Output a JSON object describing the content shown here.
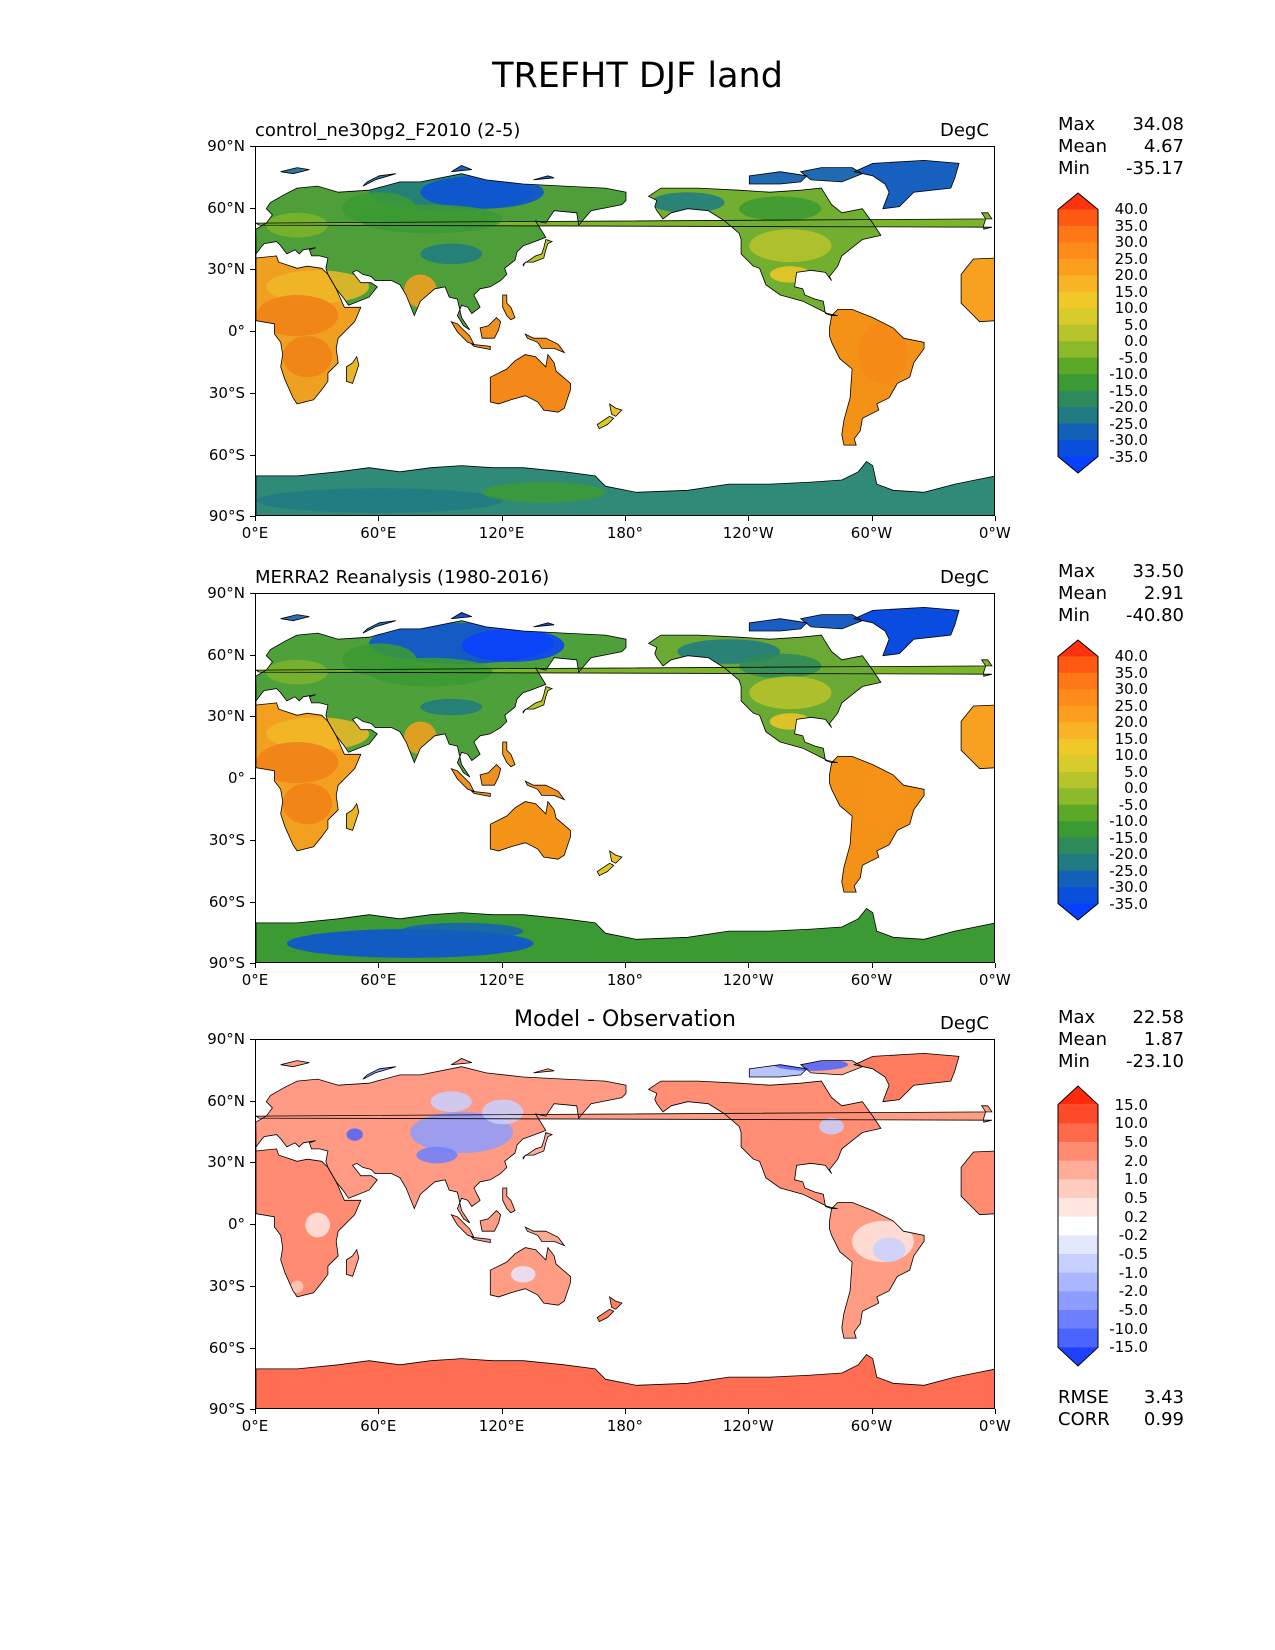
{
  "figure_title": "TREFHT DJF land",
  "lat_ticks": [
    "90°N",
    "60°N",
    "30°N",
    "0°",
    "30°S",
    "60°S",
    "90°S"
  ],
  "lon_ticks": [
    "0°E",
    "60°E",
    "120°E",
    "180°",
    "120°W",
    "60°W",
    "0°W"
  ],
  "panels": [
    {
      "title": "control_ne30pg2_F2010 (2-5)",
      "title_style": "left",
      "units": "DegC",
      "stats": {
        "max_label": "Max",
        "max": "34.08",
        "mean_label": "Mean",
        "mean": "4.67",
        "min_label": "Min",
        "min": "-35.17"
      },
      "colorbar": {
        "labels": [
          "40.0",
          "35.0",
          "30.0",
          "25.0",
          "20.0",
          "15.0",
          "10.0",
          "5.0",
          "0.0",
          "-5.0",
          "-10.0",
          "-15.0",
          "-20.0",
          "-25.0",
          "-30.0",
          "-35.0"
        ],
        "colors": [
          "#ff3210",
          "#ff5a14",
          "#ff7818",
          "#ff8c1a",
          "#fc9e1e",
          "#f8b424",
          "#f0c828",
          "#d8cc2c",
          "#b8c42c",
          "#8cba2a",
          "#5ca828",
          "#3c9a34",
          "#2e8a5a",
          "#1f7a82",
          "#1260b8",
          "#0a50dc",
          "#0840ff"
        ]
      }
    },
    {
      "title": "MERRA2 Reanalysis (1980-2016)",
      "title_style": "left",
      "units": "DegC",
      "stats": {
        "max_label": "Max",
        "max": "33.50",
        "mean_label": "Mean",
        "mean": "2.91",
        "min_label": "Min",
        "min": "-40.80"
      },
      "colorbar": {
        "labels": [
          "40.0",
          "35.0",
          "30.0",
          "25.0",
          "20.0",
          "15.0",
          "10.0",
          "5.0",
          "0.0",
          "-5.0",
          "-10.0",
          "-15.0",
          "-20.0",
          "-25.0",
          "-30.0",
          "-35.0"
        ],
        "colors": [
          "#ff3210",
          "#ff5a14",
          "#ff7818",
          "#ff8c1a",
          "#fc9e1e",
          "#f8b424",
          "#f0c828",
          "#d8cc2c",
          "#b8c42c",
          "#8cba2a",
          "#5ca828",
          "#3c9a34",
          "#2e8a5a",
          "#1f7a82",
          "#1260b8",
          "#0a50dc",
          "#0840ff"
        ]
      }
    },
    {
      "title": "Model - Observation",
      "title_style": "center",
      "units": "DegC",
      "stats": {
        "max_label": "Max",
        "max": "22.58",
        "mean_label": "Mean",
        "mean": "1.87",
        "min_label": "Min",
        "min": "-23.10"
      },
      "colorbar": {
        "labels": [
          "15.0",
          "10.0",
          "5.0",
          "2.0",
          "1.0",
          "0.5",
          "0.2",
          "-0.2",
          "-0.5",
          "-1.0",
          "-2.0",
          "-5.0",
          "-10.0",
          "-15.0"
        ],
        "colors": [
          "#ff2a0a",
          "#ff4a2a",
          "#ff6a4a",
          "#ff8c70",
          "#ffac98",
          "#ffccc0",
          "#ffe6e0",
          "#ffffff",
          "#e4e8ff",
          "#c8d0ff",
          "#aab6ff",
          "#8c9cff",
          "#6c80ff",
          "#4c64ff",
          "#2040ff"
        ]
      },
      "footer": {
        "rmse_label": "RMSE",
        "rmse": "3.43",
        "corr_label": "CORR",
        "corr": "0.99"
      }
    }
  ]
}
